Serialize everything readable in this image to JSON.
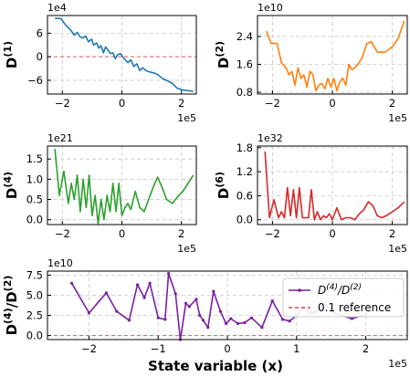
{
  "chart_data": [
    {
      "type": "line",
      "ylabel": "D",
      "ylabel_sup": "(1)",
      "x_offset": "1e5",
      "y_offset": "1e4",
      "xlim": [
        -2.5,
        2.5
      ],
      "ylim": [
        -9.5,
        10.5
      ],
      "xticks": [
        -2,
        0,
        2
      ],
      "xtick_labels": [
        "−2",
        "0",
        "2"
      ],
      "yticks": [
        -6,
        0,
        6
      ],
      "ytick_labels": [
        "−6",
        "0",
        "6"
      ],
      "grid": true,
      "hline": 0,
      "series": [
        {
          "color": "#1f77b4",
          "x": [
            -2.25,
            -2.05,
            -1.88,
            -1.72,
            -1.6,
            -1.5,
            -1.4,
            -1.3,
            -1.22,
            -1.12,
            -1.02,
            -0.95,
            -0.85,
            -0.78,
            -0.7,
            -0.62,
            -0.55,
            -0.45,
            -0.38,
            -0.3,
            -0.22,
            -0.15,
            -0.05,
            0.05,
            0.12,
            0.2,
            0.3,
            0.4,
            0.5,
            0.6,
            0.7,
            0.8,
            0.9,
            1.0,
            1.1,
            1.2,
            1.35,
            1.5,
            1.7,
            1.85,
            2.05,
            2.4
          ],
          "y": [
            9.8,
            9.7,
            8.0,
            6.8,
            5.5,
            6.2,
            5.0,
            4.8,
            5.3,
            3.8,
            4.5,
            3.0,
            3.5,
            2.2,
            2.8,
            1.0,
            2.5,
            1.5,
            0.8,
            1.0,
            -0.5,
            0.5,
            0.8,
            -0.3,
            -0.8,
            -1.5,
            -0.8,
            -2.5,
            -1.8,
            -3.5,
            -2.8,
            -3.5,
            -3.8,
            -4.0,
            -4.2,
            -4.5,
            -5.5,
            -6.0,
            -6.8,
            -8.0,
            -8.5,
            -8.8
          ]
        }
      ]
    },
    {
      "type": "line",
      "ylabel": "D",
      "ylabel_sup": "(2)",
      "x_offset": "1e5",
      "y_offset": "1e10",
      "xlim": [
        -2.5,
        2.5
      ],
      "ylim": [
        0.75,
        3.0
      ],
      "xticks": [
        -2,
        0,
        2
      ],
      "xtick_labels": [
        "−2",
        "0",
        "2"
      ],
      "yticks": [
        0.8,
        1.6,
        2.4
      ],
      "ytick_labels": [
        "0.8",
        "1.6",
        "2.4"
      ],
      "grid": true,
      "series": [
        {
          "color": "#ff7f0e",
          "x": [
            -2.2,
            -2.05,
            -1.85,
            -1.7,
            -1.55,
            -1.45,
            -1.35,
            -1.25,
            -1.15,
            -1.05,
            -0.95,
            -0.85,
            -0.75,
            -0.65,
            -0.55,
            -0.45,
            -0.35,
            -0.25,
            -0.15,
            -0.05,
            0.05,
            0.15,
            0.25,
            0.35,
            0.45,
            0.55,
            0.65,
            0.75,
            0.85,
            1.0,
            1.15,
            1.3,
            1.5,
            1.75,
            2.0,
            2.2,
            2.4
          ],
          "y": [
            2.55,
            2.2,
            2.2,
            1.65,
            1.5,
            1.3,
            1.4,
            1.0,
            1.5,
            1.2,
            1.3,
            0.95,
            1.4,
            1.3,
            0.85,
            1.0,
            1.05,
            0.9,
            1.2,
            0.95,
            1.2,
            0.85,
            1.1,
            1.2,
            1.0,
            1.6,
            1.45,
            1.5,
            1.6,
            1.8,
            2.2,
            2.25,
            1.95,
            1.95,
            2.1,
            2.35,
            2.85
          ]
        }
      ]
    },
    {
      "type": "line",
      "ylabel": "D",
      "ylabel_sup": "(4)",
      "x_offset": "1e5",
      "y_offset": "1e21",
      "xlim": [
        -2.5,
        2.5
      ],
      "ylim": [
        -0.12,
        1.82
      ],
      "xticks": [
        -2,
        0,
        2
      ],
      "xtick_labels": [
        "−2",
        "0",
        "2"
      ],
      "yticks": [
        0.0,
        0.5,
        1.0,
        1.5
      ],
      "ytick_labels": [
        "0.0",
        "0.5",
        "1.0",
        "1.5"
      ],
      "grid": true,
      "series": [
        {
          "color": "#2ca02c",
          "x": [
            -2.25,
            -2.1,
            -1.95,
            -1.8,
            -1.7,
            -1.6,
            -1.5,
            -1.4,
            -1.3,
            -1.2,
            -1.1,
            -1.0,
            -0.9,
            -0.8,
            -0.7,
            -0.6,
            -0.5,
            -0.4,
            -0.3,
            -0.2,
            -0.1,
            0.0,
            0.1,
            0.2,
            0.3,
            0.45,
            0.6,
            0.75,
            0.9,
            1.05,
            1.2,
            1.35,
            1.5,
            1.7,
            1.85,
            2.05,
            2.4
          ],
          "y": [
            1.75,
            0.6,
            1.2,
            0.4,
            0.9,
            0.5,
            1.1,
            0.2,
            1.0,
            0.3,
            1.1,
            0.1,
            0.6,
            -0.1,
            0.5,
            0.0,
            0.6,
            0.2,
            0.9,
            0.2,
            0.9,
            0.1,
            0.3,
            0.4,
            0.25,
            0.7,
            0.3,
            0.2,
            0.5,
            0.8,
            1.05,
            0.8,
            0.5,
            0.4,
            0.55,
            0.7,
            1.1
          ]
        }
      ]
    },
    {
      "type": "line",
      "ylabel": "D",
      "ylabel_sup": "(6)",
      "x_offset": "1e5",
      "y_offset": "1e32",
      "xlim": [
        -2.5,
        2.5
      ],
      "ylim": [
        -0.12,
        1.84
      ],
      "xticks": [
        -2,
        0,
        2
      ],
      "xtick_labels": [
        "−2",
        "0",
        "2"
      ],
      "yticks": [
        0.0,
        0.6,
        1.2,
        1.8
      ],
      "ytick_labels": [
        "0.0",
        "0.6",
        "1.2",
        "1.8"
      ],
      "grid": true,
      "series": [
        {
          "color": "#d62728",
          "x": [
            -2.25,
            -2.1,
            -1.95,
            -1.8,
            -1.7,
            -1.6,
            -1.5,
            -1.4,
            -1.3,
            -1.2,
            -1.1,
            -1.0,
            -0.9,
            -0.8,
            -0.7,
            -0.6,
            -0.5,
            -0.4,
            -0.3,
            -0.2,
            -0.1,
            0.0,
            0.15,
            0.3,
            0.45,
            0.6,
            0.75,
            0.9,
            1.05,
            1.2,
            1.35,
            1.5,
            1.65,
            1.8,
            2.0,
            2.2,
            2.4
          ],
          "y": [
            1.7,
            0.05,
            0.5,
            0.05,
            0.2,
            0.05,
            0.8,
            0.1,
            0.75,
            0.05,
            0.8,
            0.05,
            0.05,
            0.05,
            0.75,
            0.0,
            0.2,
            0.0,
            0.1,
            0.05,
            0.15,
            0.0,
            0.3,
            0.0,
            0.05,
            0.05,
            0.0,
            0.15,
            0.25,
            0.45,
            0.35,
            0.1,
            0.05,
            0.1,
            0.2,
            0.3,
            0.45
          ]
        }
      ]
    },
    {
      "type": "line",
      "ylabel": "D(4)/D(2)",
      "xlabel": "State variable (x)",
      "x_offset": "1e5",
      "y_offset": "1e10",
      "xlim": [
        -2.6,
        2.6
      ],
      "ylim": [
        -0.5,
        8.0
      ],
      "xticks": [
        -2,
        -1,
        0,
        1,
        2
      ],
      "xtick_labels": [
        "−2",
        "−1",
        "0",
        "1",
        "2"
      ],
      "yticks": [
        0.0,
        2.5,
        5.0,
        7.5
      ],
      "ytick_labels": [
        "0.0",
        "2.5",
        "5.0",
        "7.5"
      ],
      "grid": true,
      "hline": 0,
      "legend": {
        "location": "upper-right",
        "entries": [
          {
            "label": "D(4)/D(2)",
            "color": "#7b1fa2"
          },
          {
            "label": "0.1 reference",
            "color": "#d62728"
          }
        ]
      },
      "series": [
        {
          "name": "D(4)/D(2)",
          "color": "#7b1fa2",
          "x": [
            -2.25,
            -2.0,
            -1.75,
            -1.6,
            -1.42,
            -1.3,
            -1.2,
            -1.12,
            -1.0,
            -0.9,
            -0.85,
            -0.75,
            -0.68,
            -0.6,
            -0.55,
            -0.45,
            -0.4,
            -0.35,
            -0.28,
            -0.2,
            -0.1,
            -0.02,
            0.05,
            0.15,
            0.25,
            0.35,
            0.5,
            0.65,
            0.8,
            0.9,
            1.0,
            1.1,
            1.2,
            1.3,
            1.4,
            1.55,
            1.8,
            2.0
          ],
          "y": [
            6.5,
            2.8,
            5.3,
            3.0,
            1.9,
            6.3,
            4.7,
            6.5,
            2.2,
            2.0,
            7.7,
            5.2,
            -0.5,
            4.0,
            3.6,
            4.5,
            2.5,
            1.9,
            1.0,
            5.5,
            3.0,
            1.5,
            2.1,
            1.5,
            1.6,
            2.2,
            1.0,
            4.3,
            2.0,
            1.8,
            2.5,
            3.5,
            2.8,
            3.0,
            4.0,
            2.8,
            2.1,
            2.6
          ]
        },
        {
          "name": "0.1 reference",
          "color": "#d62728",
          "dashed": true,
          "y_const": 0
        }
      ]
    }
  ]
}
